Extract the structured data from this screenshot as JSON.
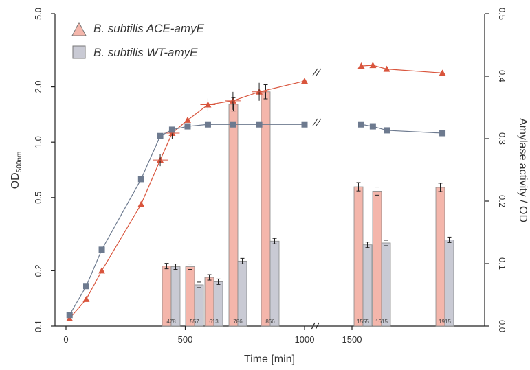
{
  "chart_data": {
    "type": "combo-bar-line",
    "xlabel": "Time [min]",
    "ylabel_left": "OD",
    "ylabel_left_subscript": "500nm",
    "ylabel_right": "Amylase activity / OD",
    "left_axis": {
      "scale": "log",
      "ylim": [
        0.1,
        5.0
      ],
      "ticks": [
        0.1,
        0.2,
        0.5,
        1.0,
        2.0,
        5.0
      ],
      "tick_labels": [
        "0.1",
        "0.2",
        "0.5",
        "1.0",
        "2.0",
        "5.0"
      ]
    },
    "right_axis": {
      "scale": "linear",
      "ylim": [
        0.0,
        0.5
      ],
      "ticks": [
        0.0,
        0.1,
        0.2,
        0.3,
        0.4,
        0.5
      ],
      "tick_labels": [
        "0.0",
        "0.1",
        "0.2",
        "0.3",
        "0.4",
        "0.5"
      ]
    },
    "x_axis": {
      "broken": true,
      "break_between": [
        1000,
        1500
      ],
      "ticks": [
        0,
        500,
        1000,
        1500
      ],
      "tick_labels": [
        "0",
        "500",
        "1000",
        "1500"
      ]
    },
    "legend_position": "top-left",
    "series": [
      {
        "name": "B. subtilis ACE-amyE",
        "color": "#d9553d",
        "bar_color": "#f4b6ab",
        "marker": "triangle",
        "od_points": [
          {
            "x": 15,
            "y": 0.11
          },
          {
            "x": 85,
            "y": 0.14
          },
          {
            "x": 150,
            "y": 0.2
          },
          {
            "x": 315,
            "y": 0.46
          },
          {
            "x": 395,
            "y": 0.8
          },
          {
            "x": 445,
            "y": 1.12
          },
          {
            "x": 510,
            "y": 1.32
          },
          {
            "x": 595,
            "y": 1.6
          },
          {
            "x": 700,
            "y": 1.68
          },
          {
            "x": 810,
            "y": 1.88
          },
          {
            "x": 1000,
            "y": 2.15
          },
          {
            "x": 1540,
            "y": 2.6
          },
          {
            "x": 1590,
            "y": 2.62
          },
          {
            "x": 1650,
            "y": 2.5
          },
          {
            "x": 1890,
            "y": 2.38
          }
        ],
        "activity": [
          {
            "label": "478",
            "value": 0.096
          },
          {
            "label": "557",
            "value": 0.095
          },
          {
            "label": "613",
            "value": 0.078
          },
          {
            "label": "786",
            "value": 0.355
          },
          {
            "label": "866",
            "value": 0.375
          },
          {
            "label": "1555",
            "value": 0.223
          },
          {
            "label": "1615",
            "value": 0.216
          },
          {
            "label": "1915",
            "value": 0.222
          }
        ]
      },
      {
        "name": "B. subtilis WT-amyE",
        "color": "#6d7a8f",
        "bar_color": "#c9cad4",
        "marker": "square",
        "od_points": [
          {
            "x": 15,
            "y": 0.115
          },
          {
            "x": 85,
            "y": 0.165
          },
          {
            "x": 150,
            "y": 0.26
          },
          {
            "x": 315,
            "y": 0.63
          },
          {
            "x": 395,
            "y": 1.08
          },
          {
            "x": 445,
            "y": 1.17
          },
          {
            "x": 510,
            "y": 1.22
          },
          {
            "x": 595,
            "y": 1.25
          },
          {
            "x": 700,
            "y": 1.25
          },
          {
            "x": 810,
            "y": 1.25
          },
          {
            "x": 1000,
            "y": 1.25
          },
          {
            "x": 1540,
            "y": 1.25
          },
          {
            "x": 1590,
            "y": 1.22
          },
          {
            "x": 1650,
            "y": 1.16
          },
          {
            "x": 1890,
            "y": 1.12
          }
        ],
        "activity": [
          {
            "label": "478",
            "value": 0.095
          },
          {
            "label": "557",
            "value": 0.066
          },
          {
            "label": "613",
            "value": 0.071
          },
          {
            "label": "786",
            "value": 0.104
          },
          {
            "label": "866",
            "value": 0.136
          },
          {
            "label": "1555",
            "value": 0.13
          },
          {
            "label": "1615",
            "value": 0.133
          },
          {
            "label": "1915",
            "value": 0.138
          }
        ]
      }
    ]
  }
}
